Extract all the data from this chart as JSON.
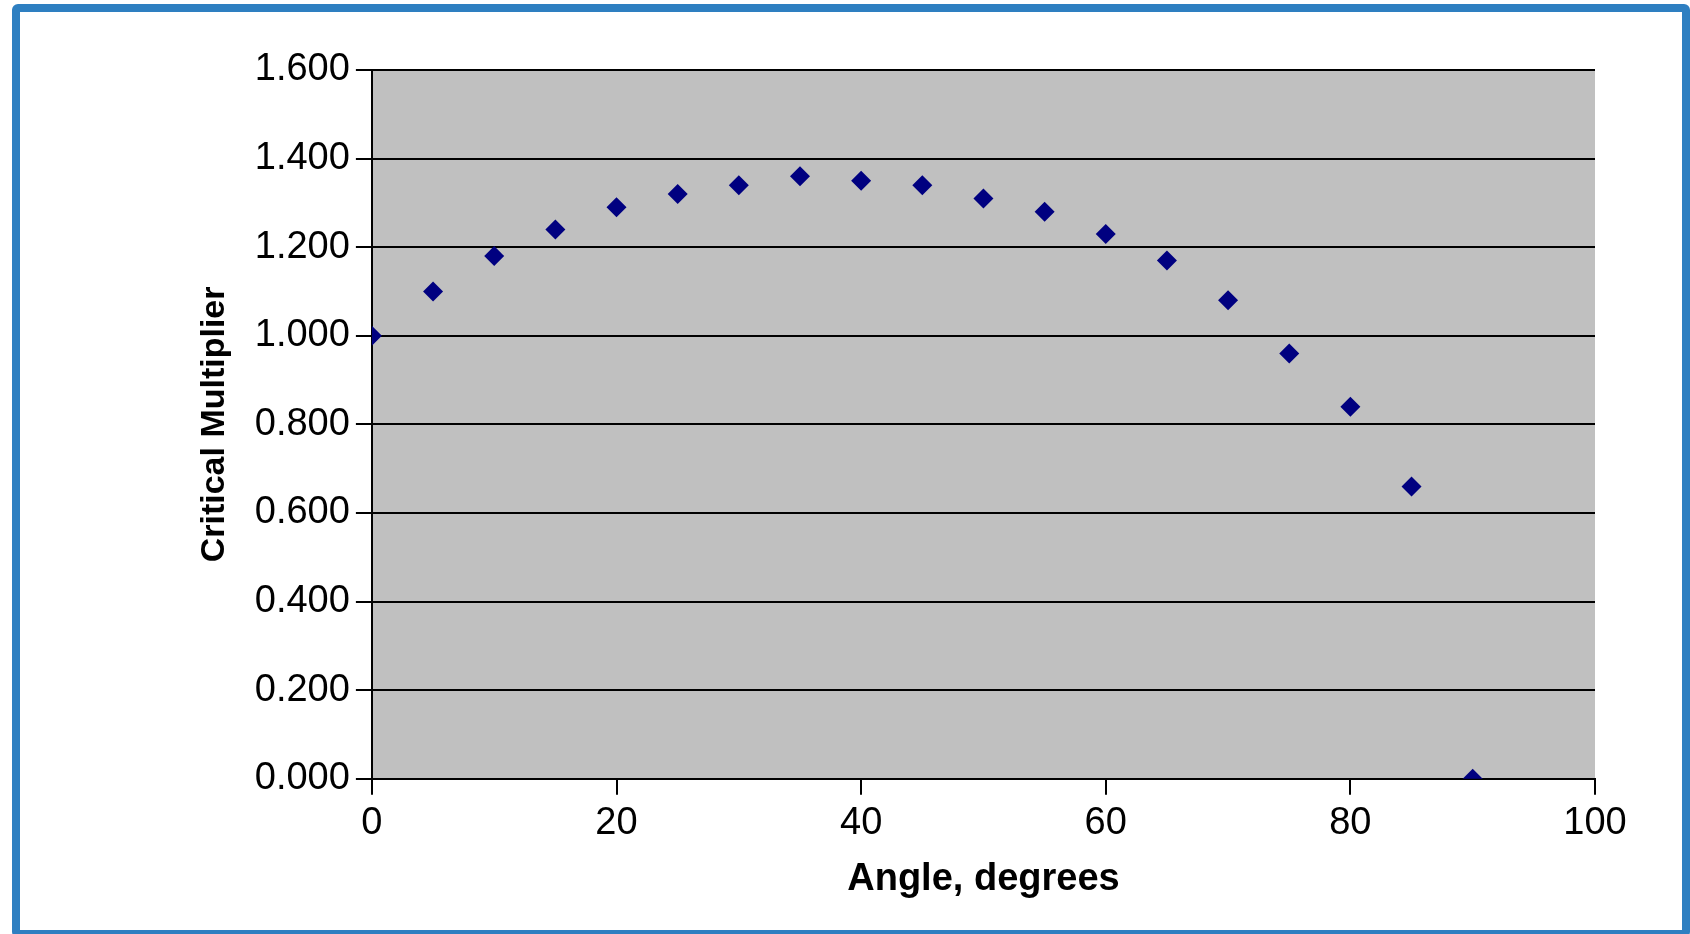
{
  "chart_data": {
    "type": "scatter",
    "xlabel": "Angle, degrees",
    "ylabel": "Critical Multiplier",
    "x": [
      0,
      5,
      10,
      15,
      20,
      25,
      30,
      35,
      40,
      45,
      50,
      55,
      60,
      65,
      70,
      75,
      80,
      85,
      90
    ],
    "series": [
      {
        "color": "#000080",
        "values": [
          1.0,
          1.1,
          1.18,
          1.24,
          1.29,
          1.32,
          1.34,
          1.36,
          1.35,
          1.34,
          1.31,
          1.28,
          1.23,
          1.17,
          1.08,
          0.96,
          0.84,
          0.66,
          0.0
        ]
      }
    ],
    "xlim": [
      0,
      100
    ],
    "xticks": [
      0,
      20,
      40,
      60,
      80,
      100
    ],
    "ylim": [
      0,
      1.6
    ],
    "yticks": [
      {
        "value": 0,
        "label": "0.000"
      },
      {
        "value": 0.2,
        "label": "0.200"
      },
      {
        "value": 0.4,
        "label": "0.400"
      },
      {
        "value": 0.6,
        "label": "0.600"
      },
      {
        "value": 0.8,
        "label": "0.800"
      },
      {
        "value": 1.0,
        "label": "1.000"
      },
      {
        "value": 1.2,
        "label": "1.200"
      },
      {
        "value": 1.4,
        "label": "1.400"
      },
      {
        "value": 1.6,
        "label": "1.600"
      }
    ],
    "grid": "y",
    "legend": false,
    "marker": "diamond"
  }
}
